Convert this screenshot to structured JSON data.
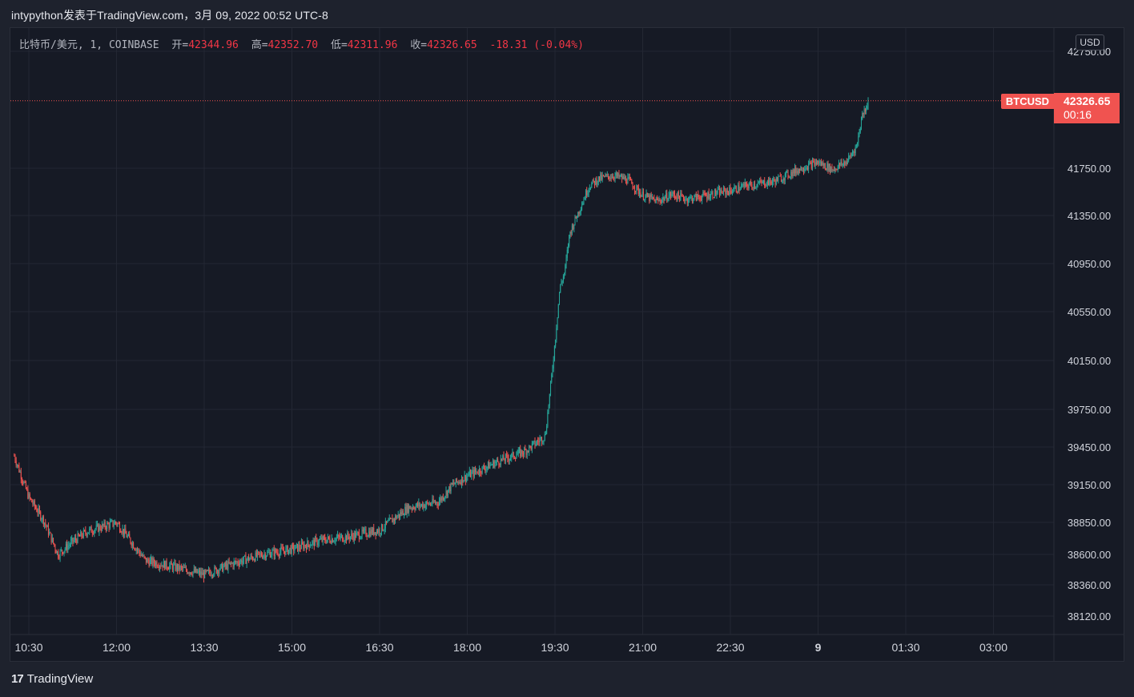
{
  "caption": "intypython发表于TradingView.com，3月 09, 2022 00:52 UTC-8",
  "legend": {
    "symbol": "比特币/美元, 1, COINBASE",
    "open_label": "开=",
    "open": "42344.96",
    "high_label": "高=",
    "high": "42352.70",
    "low_label": "低=",
    "low": "42311.96",
    "close_label": "收=",
    "close": "42326.65",
    "change": "-18.31 (-0.04%)"
  },
  "currency_button": "USD",
  "last_price_tag": {
    "symbol": "BTCUSD",
    "price": "42326.65",
    "countdown": "00:16"
  },
  "brand": "TradingView",
  "colors": {
    "up": "#26a69a",
    "down": "#ef5350",
    "tag": "#f05350",
    "background": "#161a25",
    "grid": "#232733"
  },
  "chart_data": {
    "type": "candlestick",
    "ylim": [
      37950,
      42850
    ],
    "y_ticks": [
      42750.0,
      41750.0,
      41350.0,
      40950.0,
      40550.0,
      40150.0,
      39750.0,
      39450.0,
      39150.0,
      38850.0,
      38600.0,
      38360.0,
      38120.0
    ],
    "y_tick_labels": [
      "42750.00",
      "41750.00",
      "41350.00",
      "40950.00",
      "40550.00",
      "40150.00",
      "39750.00",
      "39450.00",
      "39150.00",
      "38850.00",
      "38600.00",
      "38360.00",
      "38120.00"
    ],
    "x_tick_labels": [
      "10:30",
      "12:00",
      "13:30",
      "15:00",
      "16:30",
      "18:00",
      "19:30",
      "21:00",
      "22:30",
      "9",
      "01:30",
      "03:00"
    ],
    "last_price": 42326.65,
    "price_path": [
      [
        "10:15",
        39380
      ],
      [
        "10:30",
        39050
      ],
      [
        "10:45",
        38870
      ],
      [
        "11:00",
        38600
      ],
      [
        "11:15",
        38700
      ],
      [
        "11:30",
        38780
      ],
      [
        "12:00",
        38850
      ],
      [
        "12:15",
        38700
      ],
      [
        "12:30",
        38550
      ],
      [
        "13:00",
        38500
      ],
      [
        "13:30",
        38440
      ],
      [
        "14:00",
        38530
      ],
      [
        "14:30",
        38600
      ],
      [
        "15:00",
        38640
      ],
      [
        "15:30",
        38710
      ],
      [
        "16:00",
        38740
      ],
      [
        "16:30",
        38790
      ],
      [
        "16:45",
        38880
      ],
      [
        "17:00",
        38970
      ],
      [
        "17:30",
        39010
      ],
      [
        "17:45",
        39150
      ],
      [
        "18:00",
        39220
      ],
      [
        "18:30",
        39330
      ],
      [
        "19:00",
        39420
      ],
      [
        "19:20",
        39540
      ],
      [
        "19:25",
        39900
      ],
      [
        "19:30",
        40300
      ],
      [
        "19:35",
        40750
      ],
      [
        "19:40",
        40880
      ],
      [
        "19:45",
        41200
      ],
      [
        "19:55",
        41400
      ],
      [
        "20:05",
        41600
      ],
      [
        "20:15",
        41660
      ],
      [
        "20:30",
        41690
      ],
      [
        "20:45",
        41650
      ],
      [
        "21:00",
        41520
      ],
      [
        "21:15",
        41470
      ],
      [
        "21:30",
        41530
      ],
      [
        "21:45",
        41490
      ],
      [
        "22:00",
        41510
      ],
      [
        "22:15",
        41540
      ],
      [
        "22:30",
        41560
      ],
      [
        "22:45",
        41600
      ],
      [
        "23:00",
        41620
      ],
      [
        "23:15",
        41640
      ],
      [
        "23:30",
        41700
      ],
      [
        "23:45",
        41760
      ],
      [
        "00:00",
        41800
      ],
      [
        "00:15",
        41740
      ],
      [
        "00:30",
        41810
      ],
      [
        "00:40",
        41950
      ],
      [
        "00:45",
        42200
      ],
      [
        "00:52",
        42326.65
      ]
    ]
  }
}
